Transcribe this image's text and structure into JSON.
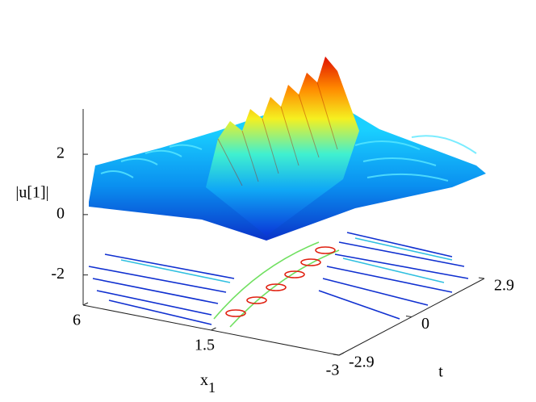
{
  "chart_data": {
    "type": "surface",
    "zlabel": "|u[1]|",
    "xlabel": "x",
    "xlabel_sub": "1",
    "ylabel": "t",
    "zlim": [
      -3,
      3.5
    ],
    "zticks": [
      -2,
      0,
      2
    ],
    "xlim": [
      6,
      -3
    ],
    "xticks": [
      6,
      1.5,
      -3
    ],
    "ylim": [
      -2.9,
      2.9
    ],
    "yticks": [
      -2.9,
      0,
      2.9
    ]
  }
}
